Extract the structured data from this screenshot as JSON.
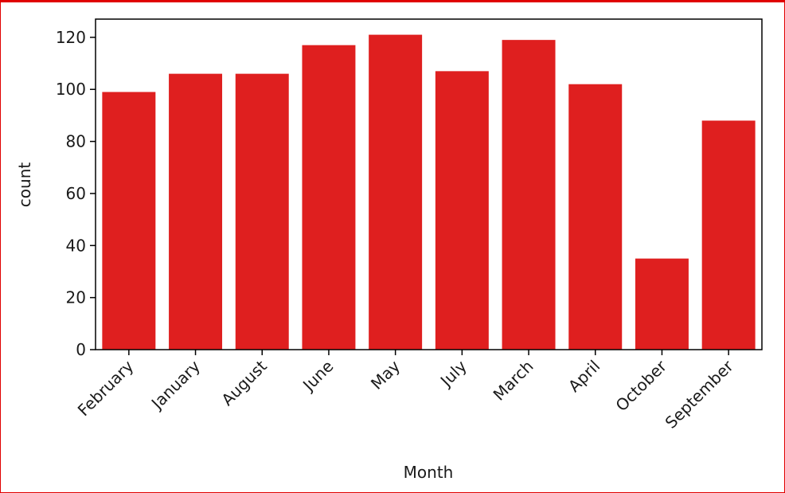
{
  "chart_data": {
    "type": "bar",
    "categories": [
      "February",
      "January",
      "August",
      "June",
      "May",
      "July",
      "March",
      "April",
      "October",
      "September"
    ],
    "values": [
      99,
      106,
      106,
      117,
      121,
      107,
      119,
      102,
      35,
      88
    ],
    "xlabel": "Month",
    "ylabel": "count",
    "ylim": [
      0,
      127
    ],
    "yticks": [
      0,
      20,
      40,
      60,
      80,
      100,
      120
    ],
    "bar_color": "#df1f1f",
    "frame_color": "#e00000",
    "grid": false
  }
}
